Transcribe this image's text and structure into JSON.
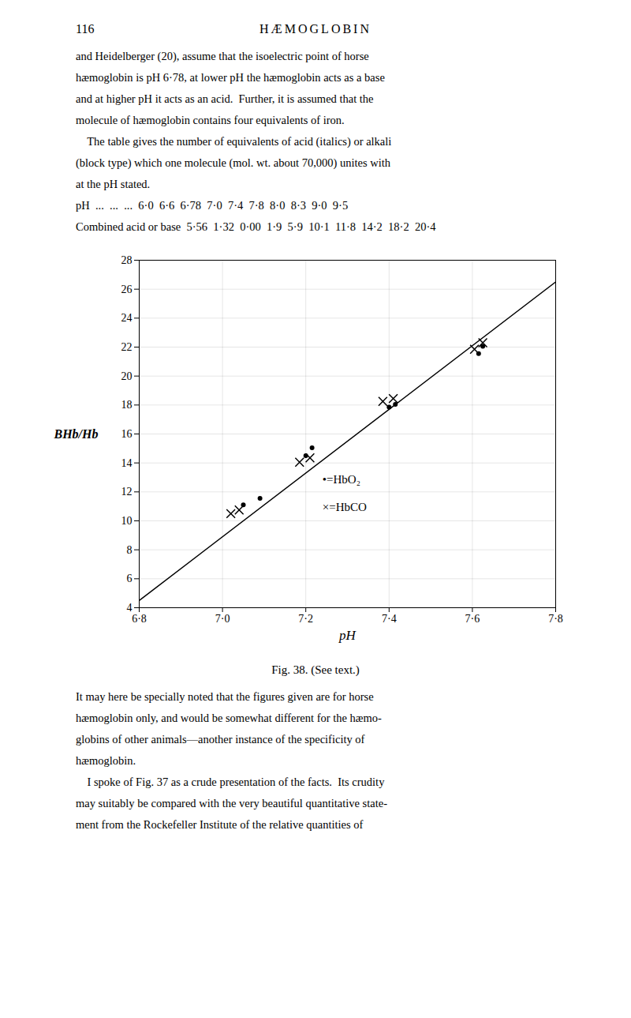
{
  "chart_data": {
    "type": "scatter",
    "title": "HÆMOGLOBIN",
    "annotations": [
      "116"
    ],
    "subtitle": [
      "and Heidelberger (20), assume that the isoelectric point of horse",
      "hæmoglobin is pH 6·78, at lower pH the hæmoglobin acts as a base",
      "and at higher pH it acts as an acid.  Further, it is assumed that the",
      "molecule of hæmoglobin contains four equivalents of iron.",
      "    The table gives the number of equivalents of acid (italics) or alkali",
      "(block type) which one molecule (mol. wt. about 70,000) unites with",
      "at the pH stated.",
      "pH  ...  ...  ...  6·0  6·6  6·78  7·0  7·4  7·8  8·0  8·3  9·0  9·5",
      "Combined acid or base  5·56  1·32  0·00  1·9  5·9  10·1  11·8  14·2  18·2  20·4"
    ],
    "caption": [
      "Fig. 38.  (See text.)",
      "It may here be specially noted that the figures given are for horse",
      "hæmoglobin only, and would be somewhat different for the hæmo-",
      "globins of other animals—another instance of the specificity of",
      "hæmoglobin.",
      "    I spoke of Fig. 37 as a crude presentation of the facts.  Its crudity",
      "may suitably be compared with the very beautiful quantitative state-",
      "ment from the Rockefeller Institute of the relative quantities of"
    ],
    "xlabel": "pH",
    "ylabel": "BHb/Hb",
    "xlim": [
      6.8,
      7.8
    ],
    "ylim": [
      4,
      28
    ],
    "xticks": [
      {
        "value": 6.8,
        "label": "6·8"
      },
      {
        "value": 7.0,
        "label": "7·0"
      },
      {
        "value": 7.2,
        "label": "7·2"
      },
      {
        "value": 7.4,
        "label": "7·4"
      },
      {
        "value": 7.6,
        "label": "7·6"
      },
      {
        "value": 7.8,
        "label": "7·8"
      }
    ],
    "yticks": [
      4,
      6,
      8,
      10,
      12,
      14,
      16,
      18,
      20,
      22,
      24,
      26,
      28
    ],
    "grid": true,
    "legend": "center",
    "series": [
      {
        "type": "line",
        "line_style": "solid",
        "color": "#000000",
        "x": [
          6.8,
          7.8
        ],
        "values": [
          4.5,
          26.5
        ]
      },
      {
        "name": "•=HbO₂",
        "type": "scatter",
        "marker": "o",
        "color": "#000000",
        "x": [
          7.05,
          7.09,
          7.2,
          7.215,
          7.4,
          7.415,
          7.615,
          7.625
        ],
        "values": [
          11.1,
          11.55,
          14.5,
          15.05,
          17.85,
          18.05,
          21.55,
          22.05
        ]
      },
      {
        "name": "×=HbCO",
        "type": "scatter",
        "marker": "x",
        "color": "#000000",
        "x": [
          7.02,
          7.04,
          7.185,
          7.21,
          7.385,
          7.41,
          7.605,
          7.625
        ],
        "values": [
          10.5,
          10.75,
          14.05,
          14.35,
          18.25,
          18.45,
          21.85,
          22.3
        ]
      }
    ]
  }
}
